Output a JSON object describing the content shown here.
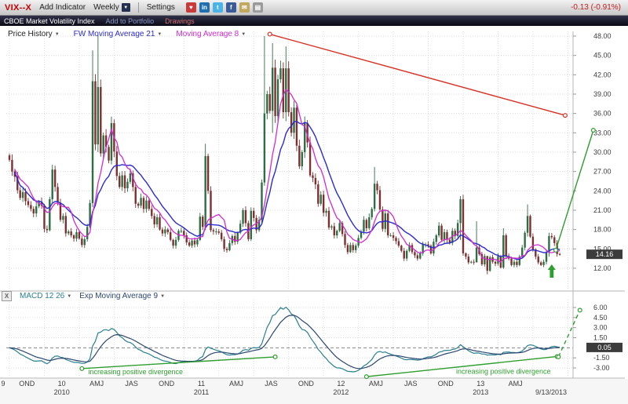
{
  "ui": {
    "dropdown_glyph": "▼"
  },
  "toolbar": {
    "symbol": "VIX--X",
    "add_indicator": "Add Indicator",
    "period": "Weekly",
    "settings": "Settings",
    "change": "-0.13 (-0.91%)",
    "icons": [
      {
        "name": "heart-icon",
        "glyph": "♥",
        "bg": "#c93a3a"
      },
      {
        "name": "linkedin-icon",
        "glyph": "in",
        "bg": "#1f6fb0"
      },
      {
        "name": "twitter-icon",
        "glyph": "t",
        "bg": "#4ab3e8"
      },
      {
        "name": "facebook-icon",
        "glyph": "f",
        "bg": "#3b5a9a"
      },
      {
        "name": "email-icon",
        "glyph": "✉",
        "bg": "#c2a85c"
      },
      {
        "name": "print-icon",
        "glyph": "▤",
        "bg": "#9a9a9a"
      }
    ]
  },
  "subbar": {
    "title": "CBOE Market Volatility Index",
    "add_to_portfolio": "Add to Portfolio",
    "drawings": "Drawings"
  },
  "legend": {
    "price_history": "Price History",
    "ma21": "FW Moving Average 21",
    "ma8": "Moving Average 8"
  },
  "macd_legend": {
    "close_label": "X",
    "macd": "MACD 12 26",
    "ema": "Exp Moving Average 9"
  },
  "price_tag": "14.16",
  "macd_tag": "0.05",
  "colors": {
    "candle_up": "#2f6e45",
    "candle_down": "#7e3030",
    "ma21": "#2b2bd0",
    "ma8": "#d02bd0",
    "macd": "#2a7f8f",
    "macd_signal": "#2c4770",
    "annotation_green": "#2e9e2e",
    "trend_red": "#d93025",
    "grid": "#dcdcdc",
    "axis_text": "#3c3c3c",
    "tag_bg": "#3c3c3c",
    "tag_text": "#ffffff",
    "zero_line": "#888888"
  },
  "annotations": {
    "downtrend_line": {
      "from_week": 97,
      "from_price": 48.3,
      "to_week": 207,
      "to_price": 35.7
    },
    "breakout_projection": {
      "from_week": 203.5,
      "from_price": 14.8,
      "to_week": 217.5,
      "to_price": 33.4
    },
    "up_arrow": {
      "week": 202,
      "price": 12.6
    },
    "macd_divergence_lines": [
      {
        "from_week": 27,
        "from_value": -3.1,
        "to_week": 99,
        "to_value": -1.35
      },
      {
        "from_week": 133,
        "from_value": -4.3,
        "to_week": 204,
        "to_value": -1.3
      }
    ],
    "macd_projection": {
      "from_week": 204.5,
      "from_value": -1.35,
      "to_week": 212.5,
      "to_value": 5.6
    },
    "divergence_label": "increasing positive divergence",
    "divergence_label_positions": [
      {
        "week": 47,
        "value": -3.95
      },
      {
        "week": 184,
        "value": -3.85
      }
    ]
  },
  "chart_data": {
    "type": "candlestick",
    "symbol": "VIX",
    "timeframe": "Weekly",
    "range": "Oct 2009 - 9/13/2013",
    "price_axis": {
      "min": 12,
      "max": 48,
      "step": 3,
      "labels": [
        "48.00",
        "45.00",
        "42.00",
        "39.00",
        "36.00",
        "33.00",
        "30.00",
        "27.00",
        "24.00",
        "21.00",
        "18.00",
        "15.00",
        "12.00"
      ]
    },
    "closes": [
      28.8,
      27.0,
      26.2,
      24.1,
      22.9,
      23.8,
      22.4,
      21.8,
      21.2,
      20.5,
      21.6,
      22.3,
      21.7,
      18.1,
      17.9,
      22.7,
      27.3,
      24.6,
      22.2,
      19.5,
      20.1,
      17.4,
      17.7,
      17.1,
      16.6,
      17.6,
      16.6,
      15.6,
      16.5,
      18.4,
      22.1,
      41.0,
      31.2,
      40.1,
      29.8,
      32.6,
      30.8,
      28.7,
      34.5,
      30.1,
      26.3,
      24.6,
      26.4,
      24.4,
      25.4,
      26.7,
      24.6,
      22.0,
      21.7,
      22.9,
      21.2,
      22.5,
      21.2,
      20.1,
      18.8,
      19.9,
      18.0,
      17.4,
      18.0,
      17.6,
      16.4,
      15.5,
      16.4,
      17.8,
      17.8,
      17.1,
      16.0,
      15.5,
      16.3,
      15.7,
      16.4,
      20.0,
      18.4,
      29.4,
      24.0,
      17.9,
      17.7,
      17.7,
      17.5,
      16.5,
      15.0,
      14.8,
      15.9,
      17.0,
      16.1,
      17.5,
      18.9,
      21.0,
      19.0,
      16.5,
      20.9,
      19.8,
      17.9,
      19.5,
      25.3,
      36.0,
      39.0,
      36.4,
      43.1,
      35.6,
      41.3,
      43.0,
      36.2,
      43.0,
      36.2,
      33.0,
      36.9,
      31.0,
      27.8,
      30.0,
      34.5,
      31.5,
      26.4,
      26.0,
      25.0,
      22.0,
      23.4,
      20.6,
      20.9,
      18.3,
      18.5,
      17.1,
      17.8,
      19.0,
      17.3,
      15.6,
      14.5,
      15.6,
      14.8,
      15.5,
      16.7,
      17.7,
      19.5,
      18.2,
      19.9,
      21.2,
      25.1,
      24.1,
      21.1,
      18.1,
      20.5,
      17.1,
      17.1,
      16.7,
      16.2,
      15.5,
      14.7,
      13.5,
      14.7,
      15.6,
      14.5,
      14.0,
      13.5,
      14.3,
      15.7,
      15.7,
      15.5,
      14.3,
      16.1,
      17.1,
      18.6,
      16.4,
      17.6,
      16.4,
      15.9,
      17.8,
      17.0,
      19.0,
      22.7,
      14.3,
      13.8,
      12.9,
      13.0,
      12.9,
      15.2,
      14.2,
      12.6,
      13.9,
      11.6,
      13.7,
      13.0,
      12.7,
      13.9,
      12.1,
      17.1,
      13.9,
      13.5,
      12.5,
      13.0,
      12.5,
      13.8,
      15.2,
      17.5,
      20.1,
      16.9,
      14.9,
      13.8,
      12.9,
      12.5,
      13.0,
      14.4,
      17.0,
      16.8,
      15.9,
      14.2,
      14.16
    ],
    "wick_overrides": {
      "31": [
        45.8,
        21.5
      ],
      "33": [
        48.2,
        30.0
      ],
      "73": [
        31.3,
        17.9
      ],
      "95": [
        48.0,
        24.8
      ],
      "98": [
        46.9,
        33.0
      ],
      "103": [
        46.4,
        34.8
      ],
      "136": [
        27.7,
        20.8
      ],
      "168": [
        23.2,
        16.4
      ],
      "174": [
        19.3,
        13.3
      ],
      "178": [
        13.9,
        11.05
      ],
      "184": [
        18.2,
        11.9
      ],
      "193": [
        21.9,
        16.9
      ],
      "201": [
        17.5,
        13.8
      ]
    },
    "last_price": 14.16,
    "last_change": "-0.13 (-0.91%)",
    "overlays": [
      {
        "name": "FW Moving Average 21",
        "period": 21
      },
      {
        "name": "Moving Average 8",
        "period": 8
      }
    ],
    "macd_panel": {
      "name": "MACD 12 26",
      "fast": 12,
      "slow": 26,
      "signal_name": "Exp Moving Average 9",
      "signal_period": 9,
      "last_value": 0.05,
      "axis": {
        "min": -3,
        "max": 6,
        "labels": [
          "6.00",
          "4.50",
          "3.00",
          "1.50",
          "-1.50",
          "-3.00"
        ]
      }
    },
    "x_axis": {
      "quarter_labels": [
        {
          "q": 0,
          "t": "OND"
        },
        {
          "q": 1,
          "t": "10"
        },
        {
          "q": 2,
          "t": "AMJ"
        },
        {
          "q": 3,
          "t": "JAS"
        },
        {
          "q": 4,
          "t": "OND"
        },
        {
          "q": 5,
          "t": "11"
        },
        {
          "q": 6,
          "t": "AMJ"
        },
        {
          "q": 7,
          "t": "JAS"
        },
        {
          "q": 8,
          "t": "OND"
        },
        {
          "q": 9,
          "t": "12"
        },
        {
          "q": 10,
          "t": "AMJ"
        },
        {
          "q": 11,
          "t": "JAS"
        },
        {
          "q": 12,
          "t": "OND"
        },
        {
          "q": 13,
          "t": "13"
        },
        {
          "q": 14,
          "t": "AMJ"
        }
      ],
      "year_labels": [
        {
          "q": 1,
          "t": "2010"
        },
        {
          "q": 5,
          "t": "2011"
        },
        {
          "q": 9,
          "t": "2012"
        },
        {
          "q": 13,
          "t": "2013"
        }
      ],
      "left_partial": "9",
      "last_date": "9/13/2013"
    }
  }
}
